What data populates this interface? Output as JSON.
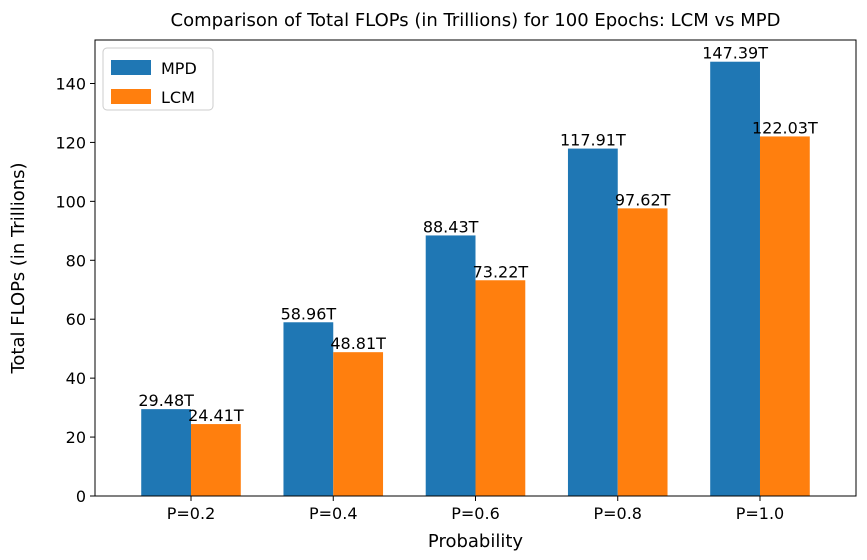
{
  "chart_data": {
    "type": "bar",
    "title": "Comparison of Total FLOPs (in Trillions) for 100 Epochs: LCM vs MPD",
    "xlabel": "Probability",
    "ylabel": "Total FLOPs (in Trillions)",
    "categories": [
      "P=0.2",
      "P=0.4",
      "P=0.6",
      "P=0.8",
      "P=1.0"
    ],
    "series": [
      {
        "name": "MPD",
        "color": "#1f77b4",
        "values": [
          29.48,
          58.96,
          88.43,
          117.91,
          147.39
        ],
        "labels": [
          "29.48T",
          "58.96T",
          "88.43T",
          "117.91T",
          "147.39T"
        ]
      },
      {
        "name": "LCM",
        "color": "#ff7f0e",
        "values": [
          24.41,
          48.81,
          73.22,
          97.62,
          122.03
        ],
        "labels": [
          "24.41T",
          "48.81T",
          "73.22T",
          "97.62T",
          "122.03T"
        ]
      }
    ],
    "ylim": [
      0,
      154.76
    ],
    "yticks": [
      0,
      20,
      40,
      60,
      80,
      100,
      120,
      140
    ],
    "ytick_labels": [
      "0",
      "20",
      "40",
      "60",
      "80",
      "100",
      "120",
      "140"
    ],
    "legend_position": "upper-left",
    "grid": false
  }
}
